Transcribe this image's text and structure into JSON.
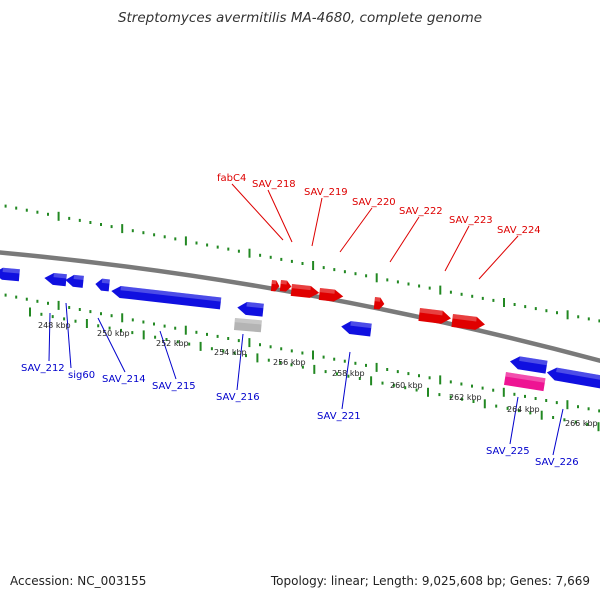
{
  "title": "Streptomyces avermitilis MA-4680, complete genome",
  "footer": {
    "accession": "Accession: NC_003155",
    "summary": "Topology: linear; Length: 9,025,608 bp; Genes: 7,669"
  },
  "colors": {
    "forward_gene": "#e00000",
    "reverse_gene": "#1010e0",
    "pseudo_gene": "#b4b4b4",
    "rna_gene": "#ee1493",
    "forward_label": "#dd0000",
    "reverse_label": "#0000cc",
    "backbone": "#7a7a7a",
    "tick": "#228822"
  },
  "scale": {
    "kbp_labels": [
      "248 kbp",
      "250 kbp",
      "252 kbp",
      "254 kbp",
      "256 kbp",
      "258 kbp",
      "260 kbp",
      "262 kbp",
      "264 kbp",
      "266 kbp"
    ]
  },
  "genes": {
    "forward": [
      "fabC4",
      "SAV_218",
      "SAV_219",
      "SAV_220",
      "SAV_222",
      "SAV_223",
      "SAV_224"
    ],
    "reverse": [
      "SAV_212",
      "sig60",
      "SAV_214",
      "SAV_215",
      "SAV_216",
      "SAV_221",
      "SAV_225",
      "SAV_226"
    ]
  }
}
